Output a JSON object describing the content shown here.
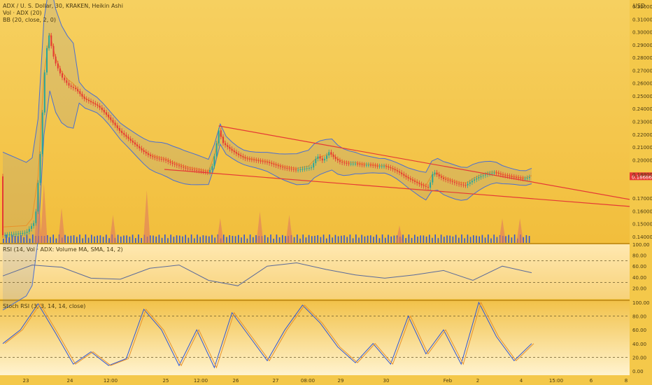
{
  "main_pane": {
    "legend": [
      "ADX / U. S. Dollar, 30, KRAKEN, Heikin Ashi",
      "Vol · ADX (20)",
      "BB (20, close, 2, 0)"
    ],
    "currency": "USD",
    "last_price": "0.18686",
    "current_price": "0.18800",
    "price_scale_ticks": [
      "0.32000",
      "0.31000",
      "0.30000",
      "0.29000",
      "0.28000",
      "0.27000",
      "0.26000",
      "0.25000",
      "0.24000",
      "0.23000",
      "0.22000",
      "0.21000",
      "0.20000",
      "0.17000",
      "0.16000",
      "0.15000",
      "0.14000"
    ]
  },
  "rsi_pane": {
    "legend": "RSI (14, Vol · ADX: Volume MA, SMA, 14, 2)",
    "ticks": [
      "100.00",
      "80.00",
      "60.00",
      "40.00",
      "20.00"
    ]
  },
  "stoch_pane": {
    "legend": "Stoch RSI (3, 3, 14, 14, close)",
    "ticks": [
      "100.00",
      "80.00",
      "60.00",
      "40.00",
      "20.00",
      "0.00"
    ]
  },
  "time_axis": [
    "23",
    "24",
    "12:00",
    "25",
    "12:00",
    "26",
    "27",
    "08:00",
    "29",
    "30",
    "Feb",
    "2",
    "4",
    "15:00",
    "6",
    "8"
  ],
  "colors": {
    "background": "#f4c84a",
    "up_candle": "#26a69a",
    "down_candle": "#e53935",
    "trendline": "#e53935",
    "bollinger": "#4a6fd1",
    "volume": "#2f56d4",
    "price_label": "#e53935"
  },
  "chart_data": [
    {
      "type": "candlestick",
      "title": "ADX / U. S. Dollar, 30, KRAKEN, Heikin Ashi",
      "ylim": [
        0.135,
        0.325
      ],
      "x_labels": [
        "23",
        "24",
        "12:00",
        "25",
        "12:00",
        "26",
        "27",
        "08:00",
        "29",
        "30",
        "Feb",
        "2",
        "4",
        "15:00",
        "6",
        "8"
      ],
      "close_path": [
        [
          0,
          0.141
        ],
        [
          8,
          0.142
        ],
        [
          16,
          0.143
        ],
        [
          22,
          0.152
        ],
        [
          26,
          0.212
        ],
        [
          28,
          0.262
        ],
        [
          31,
          0.3
        ],
        [
          35,
          0.278
        ],
        [
          40,
          0.265
        ],
        [
          45,
          0.258
        ],
        [
          50,
          0.255
        ],
        [
          55,
          0.248
        ],
        [
          60,
          0.245
        ],
        [
          65,
          0.242
        ],
        [
          70,
          0.236
        ],
        [
          75,
          0.229
        ],
        [
          80,
          0.222
        ],
        [
          85,
          0.217
        ],
        [
          90,
          0.212
        ],
        [
          95,
          0.207
        ],
        [
          100,
          0.203
        ],
        [
          105,
          0.201
        ],
        [
          110,
          0.2
        ],
        [
          115,
          0.197
        ],
        [
          120,
          0.195
        ],
        [
          125,
          0.193
        ],
        [
          130,
          0.192
        ],
        [
          135,
          0.191
        ],
        [
          140,
          0.19
        ],
        [
          143,
          0.196
        ],
        [
          147,
          0.223
        ],
        [
          150,
          0.213
        ],
        [
          155,
          0.208
        ],
        [
          160,
          0.204
        ],
        [
          165,
          0.201
        ],
        [
          170,
          0.2
        ],
        [
          175,
          0.199
        ],
        [
          180,
          0.198
        ],
        [
          185,
          0.196
        ],
        [
          190,
          0.194
        ],
        [
          195,
          0.193
        ],
        [
          200,
          0.192
        ],
        [
          205,
          0.193
        ],
        [
          210,
          0.194
        ],
        [
          214,
          0.203
        ],
        [
          218,
          0.199
        ],
        [
          222,
          0.206
        ],
        [
          226,
          0.201
        ],
        [
          230,
          0.198
        ],
        [
          235,
          0.197
        ],
        [
          240,
          0.197
        ],
        [
          245,
          0.196
        ],
        [
          250,
          0.196
        ],
        [
          255,
          0.195
        ],
        [
          260,
          0.195
        ],
        [
          265,
          0.193
        ],
        [
          270,
          0.19
        ],
        [
          275,
          0.186
        ],
        [
          280,
          0.183
        ],
        [
          285,
          0.18
        ],
        [
          290,
          0.178
        ],
        [
          293,
          0.191
        ],
        [
          297,
          0.187
        ],
        [
          300,
          0.185
        ],
        [
          305,
          0.183
        ],
        [
          310,
          0.181
        ],
        [
          315,
          0.18
        ],
        [
          320,
          0.184
        ],
        [
          325,
          0.187
        ],
        [
          330,
          0.189
        ],
        [
          335,
          0.19
        ],
        [
          340,
          0.188
        ],
        [
          345,
          0.187
        ],
        [
          350,
          0.186
        ],
        [
          355,
          0.185
        ],
        [
          360,
          0.187
        ]
      ],
      "pattern": "falling wedge (two descending trendlines)"
    },
    {
      "type": "area",
      "name": "Vol · ADX",
      "values": "volume bars with spikes near the start and at the 25th, 26th, 28th and Feb 4 sessions"
    },
    {
      "type": "line",
      "name": "RSI (14)",
      "ylim": [
        0,
        100
      ],
      "levels": [
        70,
        30
      ],
      "x": [
        0,
        20,
        40,
        60,
        80,
        100,
        120,
        140,
        160,
        180,
        200,
        220,
        240,
        260,
        280,
        300,
        320,
        340,
        360
      ],
      "values": [
        42,
        62,
        58,
        38,
        36,
        56,
        62,
        34,
        24,
        60,
        66,
        54,
        44,
        38,
        44,
        52,
        34,
        60,
        48
      ]
    },
    {
      "type": "line",
      "name": "Stoch RSI",
      "ylim": [
        0,
        100
      ],
      "levels": [
        80,
        20
      ],
      "x": [
        0,
        12,
        24,
        36,
        48,
        60,
        72,
        84,
        96,
        108,
        120,
        132,
        144,
        156,
        168,
        180,
        192,
        204,
        216,
        228,
        240,
        252,
        264,
        276,
        288,
        300,
        312,
        324,
        336,
        348,
        360
      ],
      "values": [
        40,
        60,
        98,
        55,
        10,
        28,
        8,
        18,
        90,
        60,
        8,
        60,
        5,
        85,
        50,
        15,
        60,
        96,
        70,
        35,
        12,
        40,
        10,
        80,
        25,
        60,
        10,
        100,
        50,
        15,
        40
      ]
    }
  ]
}
